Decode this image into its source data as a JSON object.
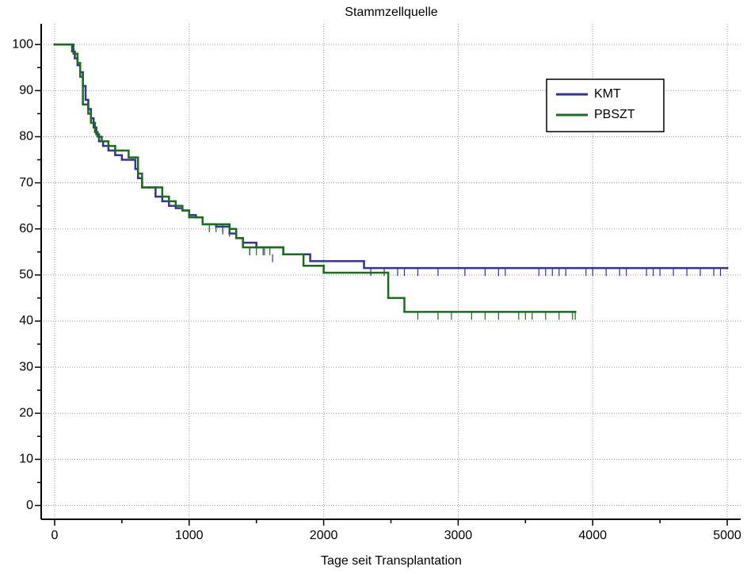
{
  "chart_data": {
    "type": "km-step",
    "title": "Stammzellquelle",
    "x_label": "Tage seit Transplantation",
    "xlim": [
      -100,
      5100
    ],
    "ylim": [
      -3,
      104.5
    ],
    "xticks": [
      0,
      1000,
      2000,
      3000,
      4000,
      5000
    ],
    "xminorticks": [
      500,
      1500,
      2500,
      3500,
      4500
    ],
    "yticks": [
      0,
      10,
      20,
      30,
      40,
      50,
      60,
      70,
      80,
      90,
      100
    ],
    "yminorticks": [
      5,
      15,
      25,
      35,
      45,
      55,
      65,
      75,
      85,
      95
    ],
    "grid": true,
    "legend": "top-right",
    "series": [
      {
        "name": "KMT",
        "color": "#33339a",
        "x": [
          0,
          130,
          150,
          170,
          190,
          210,
          230,
          250,
          270,
          290,
          310,
          330,
          360,
          400,
          450,
          500,
          580,
          600,
          620,
          650,
          700,
          750,
          800,
          850,
          900,
          950,
          1000,
          1050,
          1100,
          1200,
          1300,
          1350,
          1400,
          1500,
          1700,
          1900,
          2300,
          5000
        ],
        "values": [
          100,
          98.5,
          97,
          95.5,
          94,
          91,
          88,
          86,
          84,
          82,
          80.5,
          79,
          78,
          77,
          76,
          75,
          75,
          73,
          71,
          69,
          69,
          67,
          66,
          65,
          64.5,
          64,
          63,
          62.5,
          61,
          60.5,
          59,
          58,
          57,
          56,
          54.5,
          53,
          51.5,
          51.5
        ],
        "censored": {
          "x": [
            1250,
            1450,
            1550,
            1620,
            2350,
            2450,
            2550,
            2600,
            2700,
            2850,
            3050,
            3200,
            3300,
            3350,
            3600,
            3650,
            3700,
            3750,
            3800,
            3950,
            4000,
            4100,
            4200,
            4250,
            4400,
            4450,
            4500,
            4600,
            4700,
            4800,
            4900,
            4950
          ],
          "values": [
            60.5,
            56,
            56,
            54.5,
            51.5,
            51.5,
            51.5,
            51.5,
            51.5,
            51.5,
            51.5,
            51.5,
            51.5,
            51.5,
            51.5,
            51.5,
            51.5,
            51.5,
            51.5,
            51.5,
            51.5,
            51.5,
            51.5,
            51.5,
            51.5,
            51.5,
            51.5,
            51.5,
            51.5,
            51.5,
            51.5,
            51.5
          ]
        }
      },
      {
        "name": "PBSZT",
        "color": "#1a6e1a",
        "x": [
          0,
          140,
          170,
          190,
          210,
          250,
          270,
          300,
          320,
          350,
          400,
          450,
          500,
          550,
          600,
          620,
          650,
          700,
          800,
          850,
          900,
          950,
          1000,
          1100,
          1300,
          1350,
          1400,
          1500,
          1700,
          1850,
          2000,
          2450,
          2480,
          2600,
          3870
        ],
        "values": [
          100,
          98,
          96,
          93,
          87,
          85,
          83,
          81,
          80,
          79,
          78,
          77,
          77,
          75.5,
          75.5,
          72,
          69,
          69,
          67,
          66,
          65,
          64,
          62.5,
          61,
          60,
          58,
          56,
          56,
          54.5,
          52,
          50.5,
          50.5,
          45,
          42,
          42
        ],
        "censored": {
          "x": [
            1150,
            1200,
            1250,
            1300,
            1450,
            1500,
            1560,
            1600,
            2700,
            2850,
            2950,
            3100,
            3200,
            3300,
            3450,
            3500,
            3550,
            3650,
            3750,
            3850,
            3870
          ],
          "values": [
            61,
            61,
            61,
            60,
            56,
            56,
            56,
            56,
            42,
            42,
            42,
            42,
            42,
            42,
            42,
            42,
            42,
            42,
            42,
            42,
            42
          ]
        }
      }
    ]
  }
}
